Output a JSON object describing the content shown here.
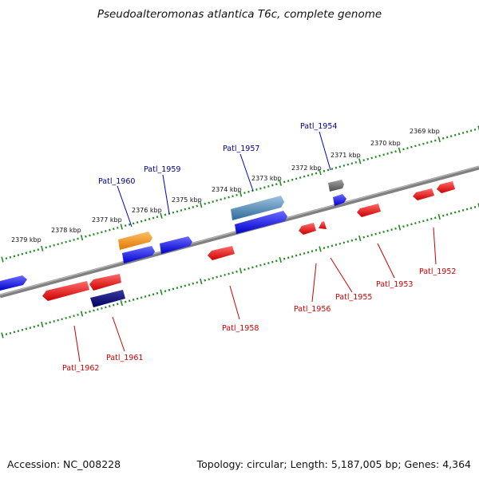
{
  "title": "Pseudoalteromonas atlantica T6c, complete genome",
  "footer": {
    "accession": "Accession: NC_008228",
    "topology": "Topology: circular; Length: 5,187,005 bp; Genes: 4,364"
  },
  "ticks": [
    "2379 kbp",
    "2378 kbp",
    "2377 kbp",
    "2376 kbp",
    "2375 kbp",
    "2374 kbp",
    "2373 kbp",
    "2372 kbp",
    "2371 kbp",
    "2370 kbp",
    "2369 kbp"
  ],
  "genes_forward": [
    "Patl_1960",
    "Patl_1959",
    "Patl_1957",
    "Patl_1954"
  ],
  "genes_reverse": [
    "Patl_1962",
    "Patl_1961",
    "Patl_1958",
    "Patl_1956",
    "Patl_1955",
    "Patl_1953",
    "Patl_1952"
  ],
  "colors": {
    "forward": "#0000ee",
    "reverse": "#ee0000",
    "dark_blue": "#000080",
    "orange": "#ff8c00",
    "steel_blue": "#4682b4",
    "gray": "#666666",
    "ruler": "#228b22",
    "backbone": "#808080"
  }
}
